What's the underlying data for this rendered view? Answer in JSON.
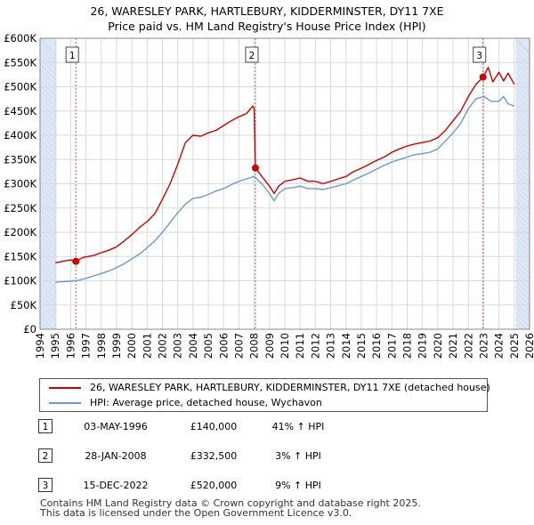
{
  "title_line1": "26, WARESLEY PARK, HARTLEBURY, KIDDERMINSTER, DY11 7XE",
  "title_line2": "Price paid vs. HM Land Registry's House Price Index (HPI)",
  "colors": {
    "property": "#cc0000",
    "hpi": "#6a9bd1",
    "shade": "#dde8f5",
    "grid": "#d9d9d9"
  },
  "legend": {
    "property": "26, WARESLEY PARK, HARTLEBURY, KIDDERMINSTER, DY11 7XE (detached house)",
    "hpi": "HPI: Average price, detached house, Wychavon"
  },
  "sales": [
    {
      "num": "1",
      "date": "03-MAY-1996",
      "price": "£140,000",
      "hpi": "41% ↑ HPI"
    },
    {
      "num": "2",
      "date": "28-JAN-2008",
      "price": "£332,500",
      "hpi": "3% ↑ HPI"
    },
    {
      "num": "3",
      "date": "15-DEC-2022",
      "price": "£520,000",
      "hpi": "9% ↑ HPI"
    }
  ],
  "footer_line1": "Contains HM Land Registry data © Crown copyright and database right 2025.",
  "footer_line2": "This data is licensed under the Open Government Licence v3.0.",
  "chart_data": {
    "type": "line",
    "xlim": [
      1994,
      2026
    ],
    "ylim": [
      0,
      600000
    ],
    "x_ticks": [
      1994,
      1995,
      1996,
      1997,
      1998,
      1999,
      2000,
      2001,
      2002,
      2003,
      2004,
      2005,
      2006,
      2007,
      2008,
      2009,
      2010,
      2011,
      2012,
      2013,
      2014,
      2015,
      2016,
      2017,
      2018,
      2019,
      2020,
      2021,
      2022,
      2023,
      2024,
      2025,
      2026
    ],
    "y_ticks": [
      {
        "value": 0,
        "label": "£0"
      },
      {
        "value": 50000,
        "label": "£50K"
      },
      {
        "value": 100000,
        "label": "£100K"
      },
      {
        "value": 150000,
        "label": "£150K"
      },
      {
        "value": 200000,
        "label": "£200K"
      },
      {
        "value": 250000,
        "label": "£250K"
      },
      {
        "value": 300000,
        "label": "£300K"
      },
      {
        "value": 350000,
        "label": "£350K"
      },
      {
        "value": 400000,
        "label": "£400K"
      },
      {
        "value": 450000,
        "label": "£450K"
      },
      {
        "value": 500000,
        "label": "£500K"
      },
      {
        "value": 550000,
        "label": "£550K"
      },
      {
        "value": 600000,
        "label": "£600K"
      }
    ],
    "shaded_ranges": [
      [
        1994,
        1995.08
      ],
      [
        2025.1,
        2026
      ]
    ],
    "sale_markers": [
      {
        "label": "1",
        "x": 1996.34,
        "y": 140000
      },
      {
        "label": "2",
        "x": 2008.08,
        "y": 332500
      },
      {
        "label": "3",
        "x": 2022.96,
        "y": 520000
      }
    ],
    "series": [
      {
        "name": "26, WARESLEY PARK, HARTLEBURY, KIDDERMINSTER, DY11 7XE (detached house)",
        "color": "#cc0000",
        "x": [
          1995.0,
          1995.5,
          1996.0,
          1996.34,
          1996.8,
          1997.5,
          1998.0,
          1998.5,
          1999.0,
          1999.5,
          2000.0,
          2000.5,
          2001.0,
          2001.5,
          2002.0,
          2002.5,
          2003.0,
          2003.5,
          2004.0,
          2004.5,
          2005.0,
          2005.5,
          2006.0,
          2006.5,
          2007.0,
          2007.5,
          2007.9,
          2008.0,
          2008.08,
          2008.5,
          2009.0,
          2009.3,
          2009.6,
          2010.0,
          2010.5,
          2011.0,
          2011.5,
          2012.0,
          2012.5,
          2013.0,
          2013.5,
          2014.0,
          2014.5,
          2015.0,
          2015.5,
          2016.0,
          2016.5,
          2017.0,
          2017.5,
          2018.0,
          2018.5,
          2019.0,
          2019.5,
          2020.0,
          2020.5,
          2021.0,
          2021.5,
          2022.0,
          2022.5,
          2022.96,
          2023.3,
          2023.6,
          2024.0,
          2024.3,
          2024.6,
          2025.0
        ],
        "y": [
          137000,
          140000,
          143000,
          140000,
          148000,
          152000,
          158000,
          163000,
          170000,
          182000,
          195000,
          210000,
          222000,
          238000,
          268000,
          300000,
          340000,
          385000,
          400000,
          398000,
          405000,
          410000,
          420000,
          430000,
          438000,
          445000,
          460000,
          455000,
          332500,
          315000,
          295000,
          280000,
          295000,
          305000,
          308000,
          312000,
          305000,
          305000,
          300000,
          305000,
          310000,
          315000,
          325000,
          332000,
          340000,
          348000,
          355000,
          365000,
          372000,
          378000,
          382000,
          385000,
          388000,
          395000,
          410000,
          430000,
          450000,
          480000,
          505000,
          520000,
          540000,
          510000,
          530000,
          512000,
          528000,
          505000
        ]
      },
      {
        "name": "HPI: Average price, detached house, Wychavon",
        "color": "#6a9bd1",
        "x": [
          1995.0,
          1995.5,
          1996.0,
          1996.5,
          1997.0,
          1997.5,
          1998.0,
          1998.5,
          1999.0,
          1999.5,
          2000.0,
          2000.5,
          2001.0,
          2001.5,
          2002.0,
          2002.5,
          2003.0,
          2003.5,
          2004.0,
          2004.5,
          2005.0,
          2005.5,
          2006.0,
          2006.5,
          2007.0,
          2007.5,
          2008.0,
          2008.5,
          2009.0,
          2009.3,
          2009.6,
          2010.0,
          2010.5,
          2011.0,
          2011.5,
          2012.0,
          2012.5,
          2013.0,
          2013.5,
          2014.0,
          2014.5,
          2015.0,
          2015.5,
          2016.0,
          2016.5,
          2017.0,
          2017.5,
          2018.0,
          2018.5,
          2019.0,
          2019.5,
          2020.0,
          2020.5,
          2021.0,
          2021.5,
          2022.0,
          2022.5,
          2023.0,
          2023.5,
          2024.0,
          2024.3,
          2024.6,
          2025.0
        ],
        "y": [
          97000,
          98000,
          99000,
          101000,
          105000,
          110000,
          115000,
          120000,
          127000,
          135000,
          145000,
          155000,
          168000,
          182000,
          200000,
          220000,
          240000,
          258000,
          270000,
          272000,
          278000,
          285000,
          290000,
          298000,
          305000,
          310000,
          315000,
          300000,
          280000,
          265000,
          280000,
          290000,
          292000,
          295000,
          290000,
          290000,
          288000,
          292000,
          296000,
          300000,
          308000,
          315000,
          322000,
          330000,
          338000,
          345000,
          350000,
          355000,
          360000,
          362000,
          365000,
          372000,
          388000,
          405000,
          425000,
          455000,
          475000,
          480000,
          470000,
          470000,
          480000,
          465000,
          460000
        ]
      }
    ]
  }
}
